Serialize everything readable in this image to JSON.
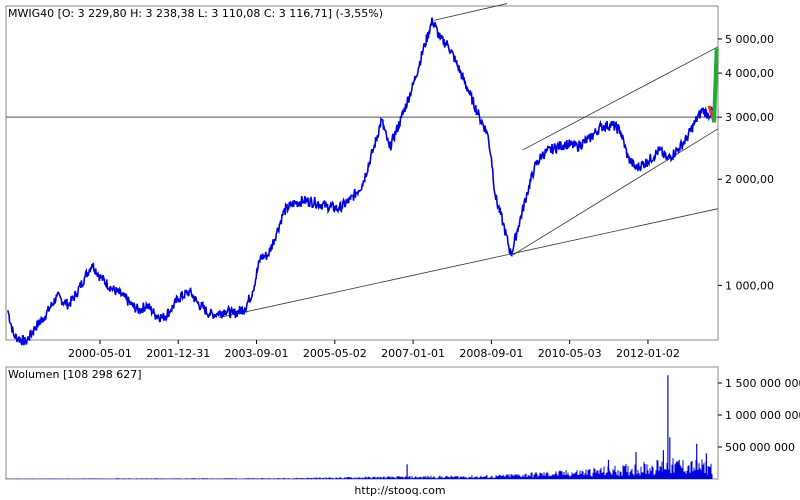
{
  "colors": {
    "price_line": "#0000dd",
    "volume_bars": "#0000dd",
    "forecast_up": "#22aa33",
    "forecast_down": "#ee3333",
    "frame": "#888888",
    "trend_lines": "#333333"
  },
  "footer": "http://stooq.com",
  "chart_data": [
    {
      "type": "line",
      "panel": "price",
      "title": "MWIG40 [O: 3 229,80  H: 3 238,38  L: 3 110,08  C: 3 116,71] (-3,55%)",
      "yscale": "log",
      "ylim": [
        700,
        6200
      ],
      "xlim": [
        "1998-05-01",
        "2013-06-30"
      ],
      "x_tick_labels": [
        "2000-05-01",
        "2001-12-31",
        "2003-09-01",
        "2005-05-02",
        "2007-01-01",
        "2008-09-01",
        "2010-05-03",
        "2012-01-02"
      ],
      "y_tick_values": [
        1000,
        2000,
        3000,
        4000,
        5000
      ],
      "y_tick_labels": [
        "1 000,00",
        "2 000,00",
        "3 000,00",
        "4 000,00",
        "5 000,00"
      ],
      "reference_line": 3000,
      "series": [
        {
          "values": [
            [
              "1998-05-15",
              850
            ],
            [
              "1998-07-01",
              720
            ],
            [
              "1998-10-01",
              690
            ],
            [
              "1998-12-15",
              760
            ],
            [
              "1999-03-01",
              820
            ],
            [
              "1999-06-01",
              930
            ],
            [
              "1999-09-01",
              880
            ],
            [
              "1999-11-01",
              950
            ],
            [
              "2000-01-01",
              1050
            ],
            [
              "2000-03-01",
              1150
            ],
            [
              "2000-05-01",
              1060
            ],
            [
              "2000-08-01",
              980
            ],
            [
              "2000-11-01",
              930
            ],
            [
              "2001-01-01",
              880
            ],
            [
              "2001-03-01",
              850
            ],
            [
              "2001-05-01",
              880
            ],
            [
              "2001-07-01",
              830
            ],
            [
              "2001-09-01",
              810
            ],
            [
              "2001-11-01",
              850
            ],
            [
              "2002-01-01",
              920
            ],
            [
              "2002-04-01",
              960
            ],
            [
              "2002-06-01",
              890
            ],
            [
              "2002-09-01",
              830
            ],
            [
              "2002-11-01",
              830
            ],
            [
              "2003-01-01",
              850
            ],
            [
              "2003-03-01",
              830
            ],
            [
              "2003-06-01",
              860
            ],
            [
              "2003-08-01",
              960
            ],
            [
              "2003-10-01",
              1200
            ],
            [
              "2003-12-01",
              1220
            ],
            [
              "2004-02-01",
              1400
            ],
            [
              "2004-04-01",
              1620
            ],
            [
              "2004-06-01",
              1700
            ],
            [
              "2004-09-01",
              1740
            ],
            [
              "2004-12-01",
              1720
            ],
            [
              "2005-03-01",
              1680
            ],
            [
              "2005-06-01",
              1650
            ],
            [
              "2005-09-01",
              1750
            ],
            [
              "2005-12-01",
              1930
            ],
            [
              "2006-03-01",
              2450
            ],
            [
              "2006-05-01",
              2950
            ],
            [
              "2006-07-01",
              2450
            ],
            [
              "2006-10-01",
              2980
            ],
            [
              "2007-01-01",
              3700
            ],
            [
              "2007-04-01",
              4800
            ],
            [
              "2007-06-01",
              5650
            ],
            [
              "2007-08-01",
              5000
            ],
            [
              "2007-10-01",
              4800
            ],
            [
              "2007-12-01",
              4300
            ],
            [
              "2008-03-01",
              3600
            ],
            [
              "2008-06-01",
              3000
            ],
            [
              "2008-08-01",
              2700
            ],
            [
              "2008-09-01",
              2300
            ],
            [
              "2008-10-01",
              1800
            ],
            [
              "2008-12-01",
              1500
            ],
            [
              "2009-02-01",
              1220
            ],
            [
              "2009-04-01",
              1480
            ],
            [
              "2009-06-01",
              1800
            ],
            [
              "2009-08-01",
              2150
            ],
            [
              "2009-10-01",
              2350
            ],
            [
              "2010-01-01",
              2450
            ],
            [
              "2010-04-01",
              2520
            ],
            [
              "2010-07-01",
              2480
            ],
            [
              "2010-10-01",
              2600
            ],
            [
              "2011-01-01",
              2820
            ],
            [
              "2011-04-01",
              2850
            ],
            [
              "2011-06-01",
              2750
            ],
            [
              "2011-08-01",
              2300
            ],
            [
              "2011-10-01",
              2150
            ],
            [
              "2012-01-01",
              2250
            ],
            [
              "2012-04-01",
              2420
            ],
            [
              "2012-06-01",
              2280
            ],
            [
              "2012-09-01",
              2450
            ],
            [
              "2012-11-01",
              2620
            ],
            [
              "2013-01-01",
              2900
            ],
            [
              "2013-03-01",
              3150
            ],
            [
              "2013-04-15",
              3050
            ],
            [
              "2013-05-15",
              3116
            ]
          ]
        }
      ],
      "forecast": {
        "down": [
          [
            "2013-04-20",
            3230
          ],
          [
            "2013-05-31",
            2900
          ]
        ],
        "up": [
          [
            "2013-05-31",
            2900
          ],
          [
            "2013-06-20",
            4700
          ]
        ]
      },
      "trend_lines": [
        [
          [
            "2002-11-15",
            810
          ],
          [
            "2013-06-30",
            1650
          ]
        ],
        [
          [
            "2009-02-15",
            1220
          ],
          [
            "2013-06-30",
            2780
          ]
        ],
        [
          [
            "2009-05-01",
            2420
          ],
          [
            "2013-06-30",
            4750
          ]
        ],
        [
          [
            "2007-06-15",
            5650
          ],
          [
            "2009-01-01",
            6300
          ]
        ]
      ]
    },
    {
      "type": "bar",
      "panel": "volume",
      "title": "Wolumen [108 298 627]",
      "ylim": [
        0,
        1750000000
      ],
      "y_tick_values": [
        500000000,
        1000000000,
        1500000000
      ],
      "y_tick_labels": [
        "500 000 000",
        "1 000 000 000",
        "1 500 000 000"
      ],
      "volume_profile": [
        [
          "1998-05-01",
          5000000
        ],
        [
          "2004-01-01",
          10000000
        ],
        [
          "2006-01-01",
          25000000
        ],
        [
          "2007-06-01",
          35000000
        ],
        [
          "2008-09-01",
          40000000
        ],
        [
          "2009-06-01",
          70000000
        ],
        [
          "2010-06-01",
          100000000
        ],
        [
          "2011-06-01",
          150000000
        ],
        [
          "2012-06-01",
          220000000
        ],
        [
          "2013-06-01",
          200000000
        ]
      ],
      "volume_spikes": [
        [
          "2006-11-15",
          230000000
        ],
        [
          "2011-03-01",
          300000000
        ],
        [
          "2011-10-01",
          420000000
        ],
        [
          "2012-05-01",
          450000000
        ],
        [
          "2012-06-05",
          1620000000
        ],
        [
          "2012-06-20",
          650000000
        ],
        [
          "2012-09-01",
          300000000
        ],
        [
          "2013-01-15",
          550000000
        ],
        [
          "2013-04-01",
          400000000
        ]
      ]
    }
  ]
}
